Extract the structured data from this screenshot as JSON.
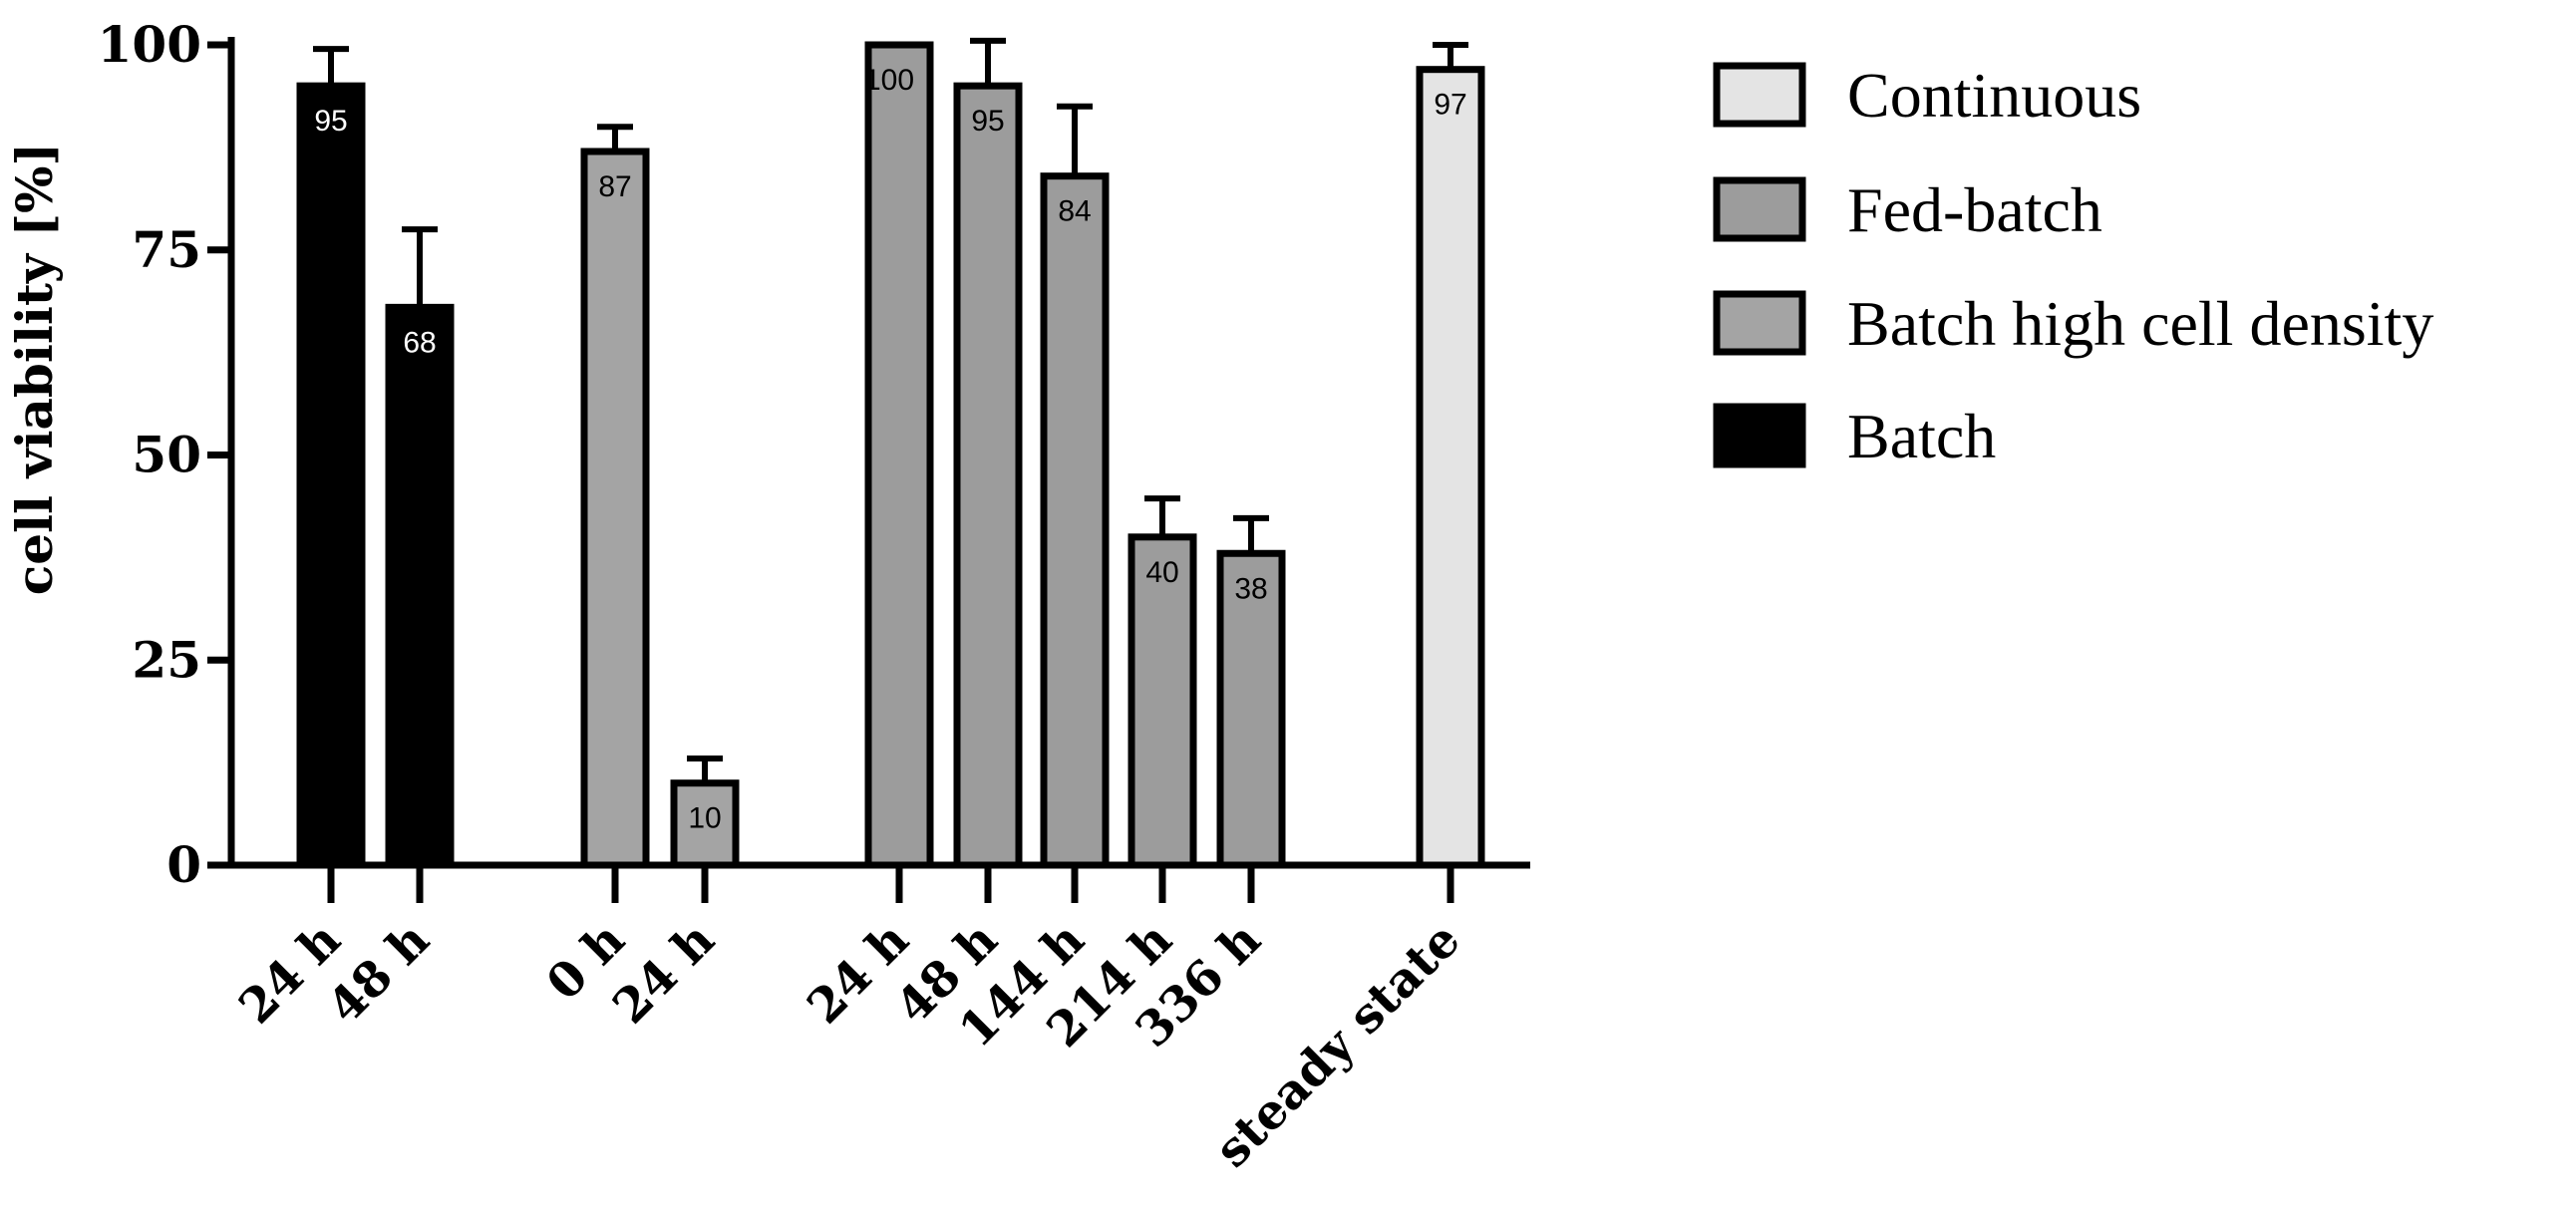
{
  "chart_data": {
    "type": "bar",
    "title": "",
    "ylabel": "cell viability [%]",
    "xlabel": "",
    "ylim": [
      0,
      100
    ],
    "yticks": [
      0,
      25,
      50,
      75,
      100
    ],
    "grid": false,
    "legend_position": "right",
    "legend": [
      {
        "name": "Continuous",
        "color": "#e4e4e4"
      },
      {
        "name": "Fed-batch",
        "color": "#9c9c9c"
      },
      {
        "name": "Batch high cell density",
        "color": "#a4a4a4"
      },
      {
        "name": "Batch",
        "color": "#000000"
      }
    ],
    "groups": [
      {
        "series": "Batch",
        "color": "#000000",
        "label_color": "#ffffff",
        "bars": [
          {
            "category": "24 h",
            "value": 95,
            "error": 4.5
          },
          {
            "category": "48 h",
            "value": 68,
            "error": 9.5
          }
        ]
      },
      {
        "series": "Batch high cell density",
        "color": "#a4a4a4",
        "label_color": "#000000",
        "bars": [
          {
            "category": "0 h",
            "value": 87,
            "error": 3
          },
          {
            "category": "24 h",
            "value": 10,
            "error": 3
          }
        ]
      },
      {
        "series": "Fed-batch",
        "color": "#9c9c9c",
        "label_color": "#000000",
        "bars": [
          {
            "category": "24 h",
            "value": 100,
            "error": 0
          },
          {
            "category": "48 h",
            "value": 95,
            "error": 5.5
          },
          {
            "category": "144 h",
            "value": 84,
            "error": 8.5
          },
          {
            "category": "214 h",
            "value": 40,
            "error": 4.7
          },
          {
            "category": "336 h",
            "value": 38,
            "error": 4.3
          }
        ]
      },
      {
        "series": "Continuous",
        "color": "#e4e4e4",
        "label_color": "#000000",
        "bars": [
          {
            "category": "steady state",
            "value": 97,
            "error": 3
          }
        ]
      }
    ]
  }
}
